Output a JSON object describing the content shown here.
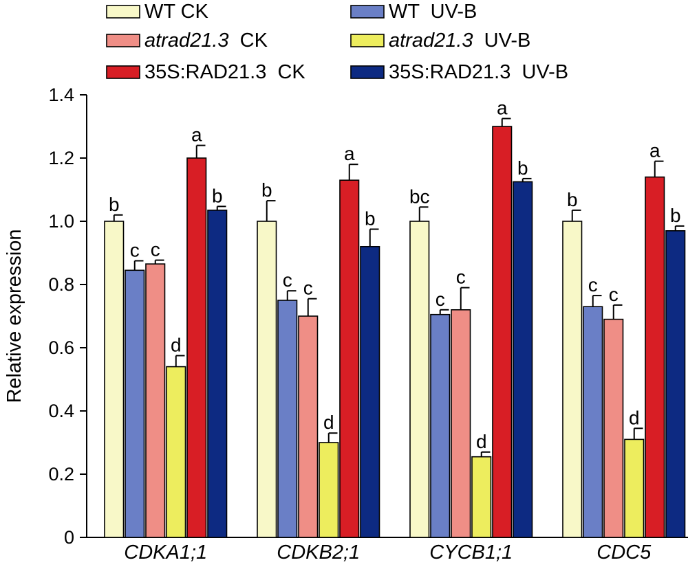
{
  "chart_data": {
    "type": "bar",
    "title": "",
    "xlabel": "",
    "ylabel": "Relative expression",
    "ylim": [
      0,
      1.4
    ],
    "yticks": [
      "0",
      "0.2",
      "0.4",
      "0.6",
      "0.8",
      "1.0",
      "1.2",
      "1.4"
    ],
    "grid": false,
    "legend_position": "top",
    "categories": [
      "CDKA1;1",
      "CDKB2;1",
      "CYCB1;1",
      "CDC5"
    ],
    "series": [
      {
        "name": "WT CK",
        "name_parts": [
          {
            "text": "WT CK",
            "italic": false
          }
        ],
        "color": "#f8f8c8",
        "values": [
          1.0,
          1.0,
          1.0,
          1.0
        ],
        "errors": [
          0.02,
          0.065,
          0.045,
          0.035
        ],
        "labels": [
          "b",
          "b",
          "bc",
          "b"
        ]
      },
      {
        "name": "WT UV-B",
        "name_parts": [
          {
            "text": "WT  UV-B",
            "italic": false
          }
        ],
        "color": "#6a7fc6",
        "values": [
          0.845,
          0.75,
          0.705,
          0.73
        ],
        "errors": [
          0.03,
          0.03,
          0.015,
          0.035
        ],
        "labels": [
          "c",
          "c",
          "c",
          "c"
        ]
      },
      {
        "name": "atrad21.3 CK",
        "name_parts": [
          {
            "text": "atrad21.3",
            "italic": true
          },
          {
            "text": "  CK",
            "italic": false
          }
        ],
        "color": "#ef8e86",
        "values": [
          0.865,
          0.7,
          0.72,
          0.69
        ],
        "errors": [
          0.012,
          0.055,
          0.07,
          0.045
        ],
        "labels": [
          "c",
          "c",
          "c",
          "c"
        ]
      },
      {
        "name": "atrad21.3 UV-B",
        "name_parts": [
          {
            "text": "atrad21.3",
            "italic": true
          },
          {
            "text": "  UV-B",
            "italic": false
          }
        ],
        "color": "#eded5e",
        "values": [
          0.54,
          0.3,
          0.255,
          0.31
        ],
        "errors": [
          0.035,
          0.03,
          0.015,
          0.035
        ],
        "labels": [
          "d",
          "d",
          "d",
          "d"
        ]
      },
      {
        "name": "35S:RAD21.3 CK",
        "name_parts": [
          {
            "text": "35S:RAD21.3  CK",
            "italic": false
          }
        ],
        "color": "#d81e25",
        "values": [
          1.2,
          1.13,
          1.3,
          1.14
        ],
        "errors": [
          0.04,
          0.05,
          0.025,
          0.05
        ],
        "labels": [
          "a",
          "a",
          "a",
          "a"
        ]
      },
      {
        "name": "35S:RAD21.3 UV-B",
        "name_parts": [
          {
            "text": "35S:RAD21.3  UV-B",
            "italic": false
          }
        ],
        "color": "#0d2a82",
        "values": [
          1.035,
          0.92,
          1.125,
          0.97
        ],
        "errors": [
          0.012,
          0.055,
          0.01,
          0.015
        ],
        "labels": [
          "b",
          "b",
          "b",
          "b"
        ]
      }
    ]
  }
}
